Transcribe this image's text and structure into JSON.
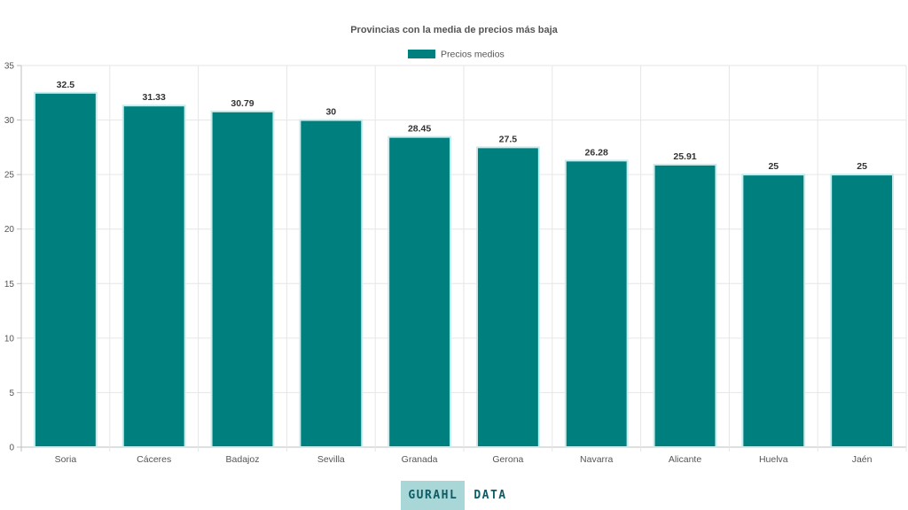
{
  "colors": {
    "bar": "#007f7f",
    "bar_border": "#c9ecec",
    "grid": "#e6e6e6",
    "axis": "#bfbfbf",
    "text": "#555555",
    "label": "#333333"
  },
  "chart_data": {
    "type": "bar",
    "title": "Provincias con la media de precios más baja",
    "xlabel": "",
    "ylabel": "",
    "ylim": [
      0,
      35
    ],
    "yticks": [
      0,
      5,
      10,
      15,
      20,
      25,
      30,
      35
    ],
    "grid": true,
    "legend_position": "top",
    "categories": [
      "Soria",
      "Cáceres",
      "Badajoz",
      "Sevilla",
      "Granada",
      "Gerona",
      "Navarra",
      "Alicante",
      "Huelva",
      "Jaén"
    ],
    "series": [
      {
        "name": "Precios medios",
        "values": [
          32.5,
          31.33,
          30.79,
          30,
          28.45,
          27.5,
          26.28,
          25.91,
          25,
          25
        ],
        "labels": [
          "32.5",
          "31.33",
          "30.79",
          "30",
          "28.45",
          "27.5",
          "26.28",
          "25.91",
          "25",
          "25"
        ]
      }
    ]
  },
  "footer": {
    "brand_box": "GURAHL",
    "brand_text": "DATA"
  }
}
